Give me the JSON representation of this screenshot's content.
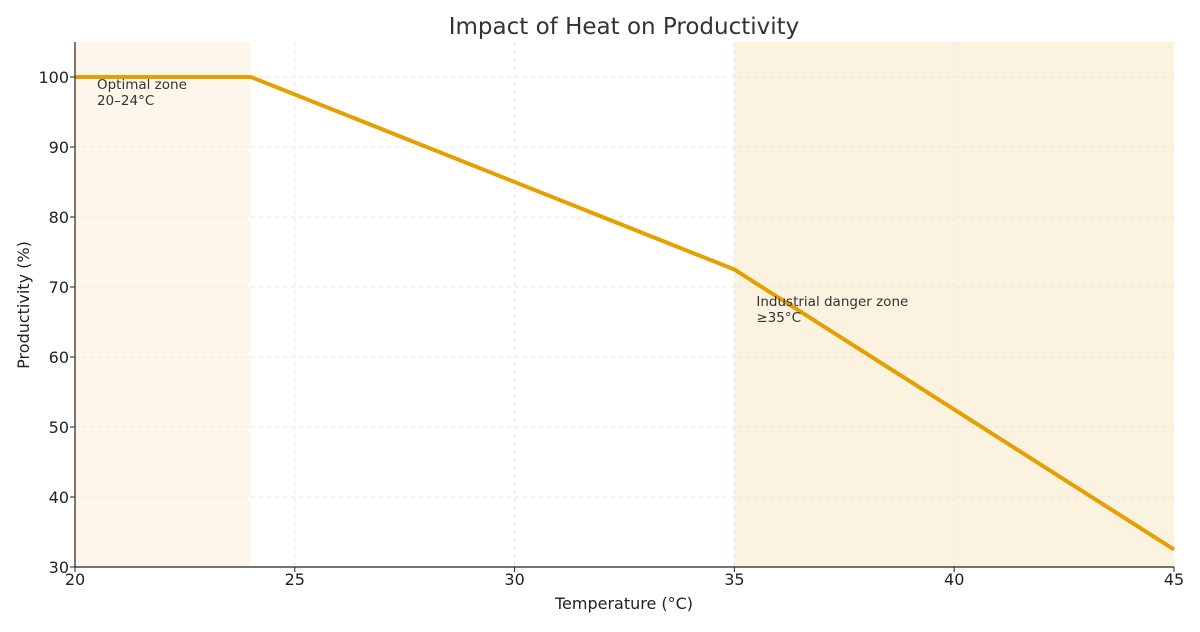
{
  "chart_data": {
    "type": "line",
    "title": "Impact of Heat on Productivity",
    "xlabel": "Temperature (°C)",
    "ylabel": "Productivity (%)",
    "xlim": [
      20,
      45
    ],
    "ylim": [
      30,
      105
    ],
    "xticks": [
      20,
      25,
      30,
      35,
      40,
      45
    ],
    "yticks": [
      30,
      40,
      50,
      60,
      70,
      80,
      90,
      100
    ],
    "grid": true,
    "series": [
      {
        "x": [
          20,
          24,
          35,
          45
        ],
        "y": [
          100,
          100,
          72.5,
          32.5
        ],
        "color": "#E69F00"
      }
    ],
    "shaded_regions": [
      {
        "x": [
          20,
          24
        ],
        "color": "#FDF6EA"
      },
      {
        "x": [
          35,
          45
        ],
        "color": "#FBF2E0"
      }
    ],
    "annotations": [
      {
        "lines": [
          "Optimal zone",
          "20–24°C"
        ],
        "x": 20.5,
        "y": 98.3
      },
      {
        "lines": [
          "Industrial danger zone",
          "≥35°C"
        ],
        "x": 35.5,
        "y": 67.3
      }
    ]
  }
}
